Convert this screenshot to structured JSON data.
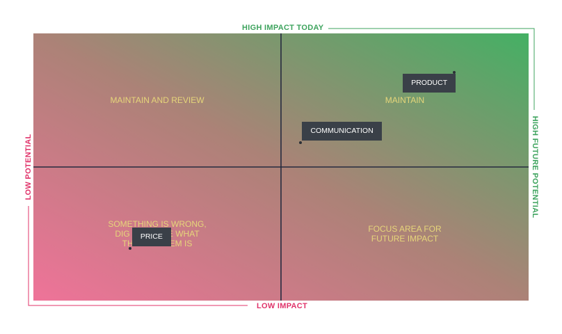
{
  "chart_data": {
    "type": "scatter",
    "title": "",
    "axes": {
      "top": "HIGH IMPACT TODAY",
      "bottom": "LOW IMPACT",
      "left": "LOW POTENTIAL",
      "right": "HIGH FUTURE POTENTIAL"
    },
    "xlim": [
      -1,
      1
    ],
    "ylim": [
      -1,
      1
    ],
    "quadrants": [
      {
        "position": "top-left",
        "label": "MAINTAIN AND REVIEW"
      },
      {
        "position": "top-right",
        "label": "MAINTAIN"
      },
      {
        "position": "bottom-left",
        "label": "SOMETHING IS WRONG,\nDIG IN TO SEE WHAT\nTHE PROBLEM IS"
      },
      {
        "position": "bottom-right",
        "label": "FOCUS AREA FOR\nFUTURE IMPACT"
      }
    ],
    "points": [
      {
        "label": "PRODUCT",
        "x": 0.7,
        "y": 0.71
      },
      {
        "label": "COMMUNICATION",
        "x": 0.08,
        "y": 0.18
      },
      {
        "label": "PRICE",
        "x": -0.61,
        "y": -0.61
      }
    ],
    "colors": {
      "low": "#ef7399",
      "high": "#44b064",
      "axis_lines": "#252a3f",
      "quadrant_text": "#e6d67a",
      "point_box": "#3a4048"
    }
  }
}
